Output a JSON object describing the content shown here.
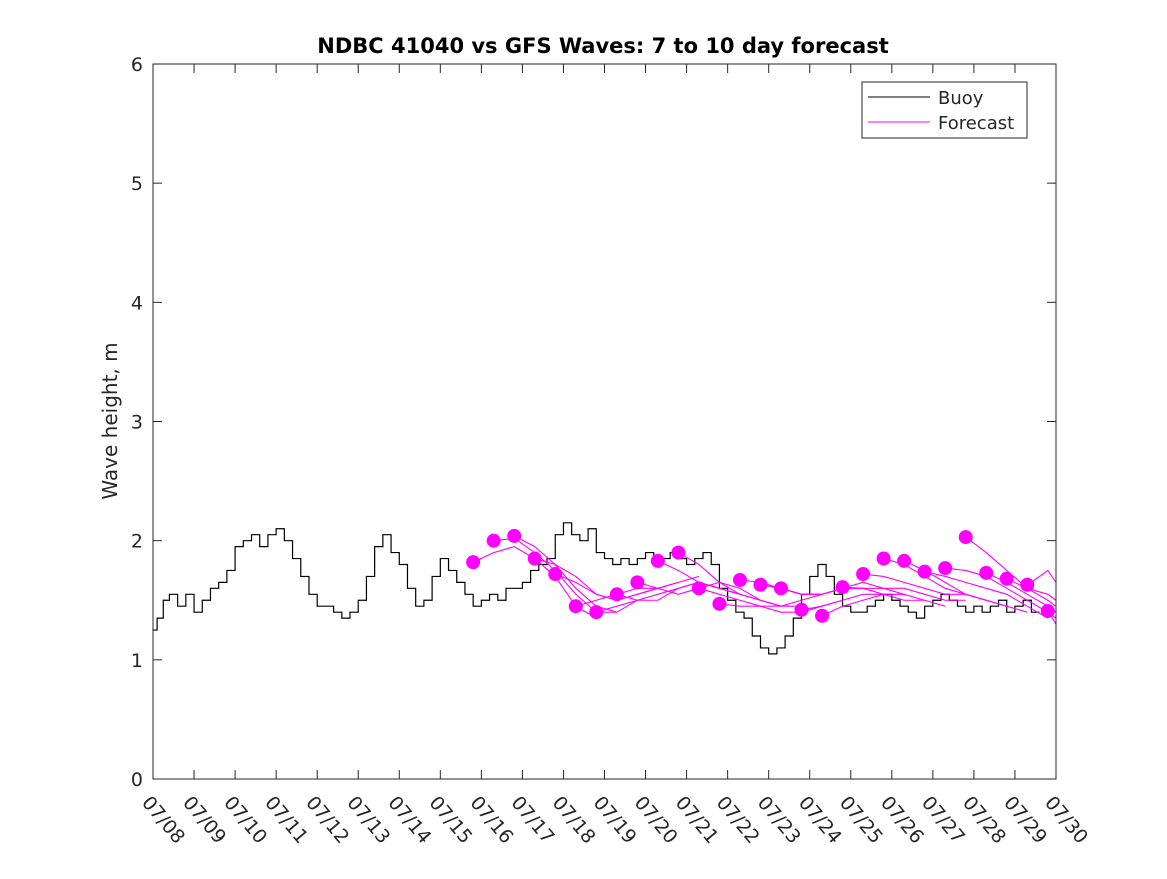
{
  "chart_data": {
    "type": "line",
    "title": "NDBC 41040 vs GFS Waves: 7 to 10 day forecast",
    "xlabel": "",
    "ylabel": "Wave height, m",
    "ylim": [
      0,
      6
    ],
    "yticks": [
      "0",
      "1",
      "2",
      "3",
      "4",
      "5",
      "6"
    ],
    "xticks": [
      "07/08",
      "07/09",
      "07/10",
      "07/11",
      "07/12",
      "07/13",
      "07/14",
      "07/15",
      "07/16",
      "07/17",
      "07/18",
      "07/19",
      "07/20",
      "07/21",
      "07/22",
      "07/23",
      "07/24",
      "07/25",
      "07/26",
      "07/27",
      "07/28",
      "07/29",
      "07/30"
    ],
    "x_unit": "day index from 07/08 (0 = 07/08, 22 = 07/30)",
    "xlim": [
      0,
      22
    ],
    "grid": false,
    "legend": {
      "position": "top-right",
      "entries": [
        "Buoy",
        "Forecast"
      ]
    },
    "colors": {
      "buoy": "#000000",
      "forecast": "#ff00ff"
    },
    "buoy_series": {
      "name": "Buoy",
      "x": [
        0,
        0.1,
        0.25,
        0.4,
        0.6,
        0.8,
        1.0,
        1.2,
        1.4,
        1.6,
        1.8,
        2.0,
        2.2,
        2.4,
        2.6,
        2.8,
        3.0,
        3.2,
        3.4,
        3.6,
        3.8,
        4.0,
        4.2,
        4.4,
        4.6,
        4.8,
        5.0,
        5.2,
        5.4,
        5.6,
        5.8,
        6.0,
        6.2,
        6.4,
        6.6,
        6.8,
        7.0,
        7.2,
        7.4,
        7.6,
        7.8,
        8.0,
        8.2,
        8.4,
        8.6,
        8.8,
        9.0,
        9.2,
        9.4,
        9.6,
        9.8,
        10.0,
        10.2,
        10.4,
        10.6,
        10.8,
        11.0,
        11.2,
        11.4,
        11.6,
        11.8,
        12.0,
        12.2,
        12.4,
        12.6,
        12.8,
        13.0,
        13.2,
        13.4,
        13.6,
        13.8,
        14.0,
        14.2,
        14.4,
        14.6,
        14.8,
        15.0,
        15.2,
        15.4,
        15.6,
        15.8,
        16.0,
        16.2,
        16.4,
        16.6,
        16.8,
        17.0,
        17.2,
        17.4,
        17.6,
        17.8,
        18.0,
        18.2,
        18.4,
        18.6,
        18.8,
        19.0,
        19.2,
        19.4,
        19.6,
        19.8,
        20.0,
        20.2,
        20.4,
        20.6,
        20.8,
        21.0,
        21.2,
        21.4
      ],
      "values": [
        1.25,
        1.35,
        1.5,
        1.55,
        1.45,
        1.55,
        1.4,
        1.5,
        1.6,
        1.65,
        1.75,
        1.95,
        2.0,
        2.05,
        1.95,
        2.05,
        2.1,
        2.0,
        1.85,
        1.7,
        1.55,
        1.45,
        1.45,
        1.4,
        1.35,
        1.4,
        1.5,
        1.7,
        1.95,
        2.05,
        1.9,
        1.8,
        1.6,
        1.45,
        1.5,
        1.7,
        1.85,
        1.75,
        1.65,
        1.55,
        1.45,
        1.5,
        1.55,
        1.5,
        1.6,
        1.6,
        1.65,
        1.75,
        1.8,
        1.85,
        2.05,
        2.15,
        2.05,
        2.0,
        2.1,
        1.9,
        1.85,
        1.8,
        1.85,
        1.8,
        1.85,
        1.9,
        1.85,
        1.85,
        1.9,
        1.85,
        1.8,
        1.85,
        1.9,
        1.8,
        1.6,
        1.5,
        1.4,
        1.35,
        1.2,
        1.1,
        1.05,
        1.1,
        1.2,
        1.35,
        1.55,
        1.7,
        1.8,
        1.7,
        1.55,
        1.45,
        1.4,
        1.4,
        1.45,
        1.5,
        1.55,
        1.5,
        1.45,
        1.4,
        1.35,
        1.45,
        1.5,
        1.55,
        1.5,
        1.45,
        1.4,
        1.45,
        1.4,
        1.45,
        1.5,
        1.4,
        1.45,
        1.5,
        1.4
      ]
    },
    "forecast_series": [
      {
        "x": [
          7.8,
          8.3,
          8.8,
          9.3,
          9.8,
          10.3,
          10.8
        ],
        "values": [
          1.82,
          1.9,
          1.95,
          1.85,
          1.7,
          1.45,
          1.35
        ]
      },
      {
        "x": [
          8.3,
          8.8,
          9.3,
          9.8,
          10.3,
          10.8,
          11.3
        ],
        "values": [
          2.0,
          2.02,
          1.9,
          1.75,
          1.55,
          1.4,
          1.4
        ]
      },
      {
        "x": [
          8.8,
          9.3,
          9.8,
          10.3,
          10.8,
          11.3,
          11.8
        ],
        "values": [
          2.04,
          1.95,
          1.8,
          1.6,
          1.45,
          1.4,
          1.5
        ]
      },
      {
        "x": [
          9.3,
          9.8,
          10.3,
          10.8,
          11.3,
          11.8,
          12.3
        ],
        "values": [
          1.85,
          1.8,
          1.7,
          1.55,
          1.5,
          1.55,
          1.6
        ]
      },
      {
        "x": [
          9.8,
          10.3,
          10.8,
          11.3,
          11.8,
          12.3,
          12.8
        ],
        "values": [
          1.72,
          1.65,
          1.55,
          1.5,
          1.55,
          1.6,
          1.65
        ]
      },
      {
        "x": [
          10.3,
          10.8,
          11.3,
          11.8,
          12.3,
          12.8,
          13.3
        ],
        "values": [
          1.45,
          1.5,
          1.55,
          1.6,
          1.6,
          1.65,
          1.7
        ]
      },
      {
        "x": [
          10.8,
          11.3,
          11.8,
          12.3,
          12.8,
          13.3,
          13.8
        ],
        "values": [
          1.4,
          1.45,
          1.5,
          1.55,
          1.6,
          1.65,
          1.6
        ]
      },
      {
        "x": [
          11.3,
          11.8,
          12.3,
          12.8,
          13.3,
          13.8,
          14.3
        ],
        "values": [
          1.55,
          1.5,
          1.5,
          1.6,
          1.65,
          1.6,
          1.55
        ]
      },
      {
        "x": [
          11.8,
          12.3,
          12.8,
          13.3,
          13.8,
          14.3,
          14.8
        ],
        "values": [
          1.65,
          1.6,
          1.55,
          1.6,
          1.65,
          1.6,
          1.5
        ]
      },
      {
        "x": [
          12.3,
          12.8,
          13.3,
          13.8,
          14.3,
          14.8,
          15.3
        ],
        "values": [
          1.83,
          1.75,
          1.65,
          1.6,
          1.55,
          1.5,
          1.45
        ]
      },
      {
        "x": [
          12.8,
          13.3,
          13.8,
          14.3,
          14.8,
          15.3,
          15.8
        ],
        "values": [
          1.9,
          1.8,
          1.65,
          1.55,
          1.5,
          1.45,
          1.45
        ]
      },
      {
        "x": [
          13.3,
          13.8,
          14.3,
          14.8,
          15.3,
          15.8,
          16.3
        ],
        "values": [
          1.6,
          1.55,
          1.5,
          1.45,
          1.45,
          1.5,
          1.55
        ]
      },
      {
        "x": [
          13.8,
          14.3,
          14.8,
          15.3,
          15.8,
          16.3,
          16.8
        ],
        "values": [
          1.47,
          1.45,
          1.45,
          1.4,
          1.4,
          1.45,
          1.5
        ]
      },
      {
        "x": [
          14.3,
          14.8,
          15.3,
          15.8,
          16.3,
          16.8,
          17.3
        ],
        "values": [
          1.67,
          1.65,
          1.6,
          1.55,
          1.55,
          1.6,
          1.6
        ]
      },
      {
        "x": [
          14.8,
          15.3,
          15.8,
          16.3,
          16.8,
          17.3,
          17.8
        ],
        "values": [
          1.63,
          1.6,
          1.55,
          1.55,
          1.6,
          1.6,
          1.55
        ]
      },
      {
        "x": [
          15.3,
          15.8,
          16.3,
          16.8,
          17.3,
          17.8,
          18.3
        ],
        "values": [
          1.6,
          1.55,
          1.55,
          1.6,
          1.65,
          1.6,
          1.55
        ]
      },
      {
        "x": [
          15.8,
          16.3,
          16.8,
          17.3,
          17.8,
          18.3,
          18.8
        ],
        "values": [
          1.42,
          1.45,
          1.5,
          1.55,
          1.55,
          1.5,
          1.5
        ]
      },
      {
        "x": [
          16.3,
          16.8,
          17.3,
          17.8,
          18.3,
          18.8,
          19.3
        ],
        "values": [
          1.37,
          1.45,
          1.5,
          1.55,
          1.55,
          1.5,
          1.45
        ]
      },
      {
        "x": [
          16.8,
          17.3,
          17.8,
          18.3,
          18.8,
          19.3,
          19.8
        ],
        "values": [
          1.61,
          1.6,
          1.6,
          1.6,
          1.55,
          1.5,
          1.5
        ]
      },
      {
        "x": [
          17.3,
          17.8,
          18.3,
          18.8,
          19.3,
          19.8,
          20.3
        ],
        "values": [
          1.72,
          1.7,
          1.65,
          1.6,
          1.55,
          1.55,
          1.5
        ]
      },
      {
        "x": [
          17.8,
          18.3,
          18.8,
          19.3,
          19.8,
          20.3,
          20.8
        ],
        "values": [
          1.85,
          1.8,
          1.7,
          1.6,
          1.55,
          1.5,
          1.45
        ]
      },
      {
        "x": [
          18.3,
          18.8,
          19.3,
          19.8,
          20.3,
          20.8,
          21.3
        ],
        "values": [
          1.83,
          1.75,
          1.65,
          1.55,
          1.5,
          1.45,
          1.4
        ]
      },
      {
        "x": [
          18.8,
          19.3,
          19.8,
          20.3,
          20.8,
          21.3,
          21.8
        ],
        "values": [
          1.74,
          1.7,
          1.65,
          1.6,
          1.55,
          1.45,
          1.35
        ]
      },
      {
        "x": [
          19.3,
          19.8,
          20.3,
          20.8,
          21.3,
          21.8,
          22.0
        ],
        "values": [
          1.77,
          1.75,
          1.7,
          1.6,
          1.5,
          1.4,
          1.35
        ]
      },
      {
        "x": [
          19.8,
          20.3,
          20.8,
          21.3,
          21.8,
          22.0
        ],
        "values": [
          2.03,
          1.9,
          1.75,
          1.6,
          1.5,
          1.45
        ]
      },
      {
        "x": [
          20.3,
          20.8,
          21.3,
          21.8,
          22.0
        ],
        "values": [
          1.73,
          1.65,
          1.55,
          1.45,
          1.4
        ]
      },
      {
        "x": [
          20.8,
          21.3,
          21.8,
          22.0
        ],
        "values": [
          1.68,
          1.6,
          1.55,
          1.5
        ]
      },
      {
        "x": [
          21.3,
          21.6,
          21.8,
          22.0
        ],
        "values": [
          1.63,
          1.7,
          1.75,
          1.65
        ]
      },
      {
        "x": [
          21.8,
          22.0
        ],
        "values": [
          1.41,
          1.3
        ]
      }
    ]
  }
}
